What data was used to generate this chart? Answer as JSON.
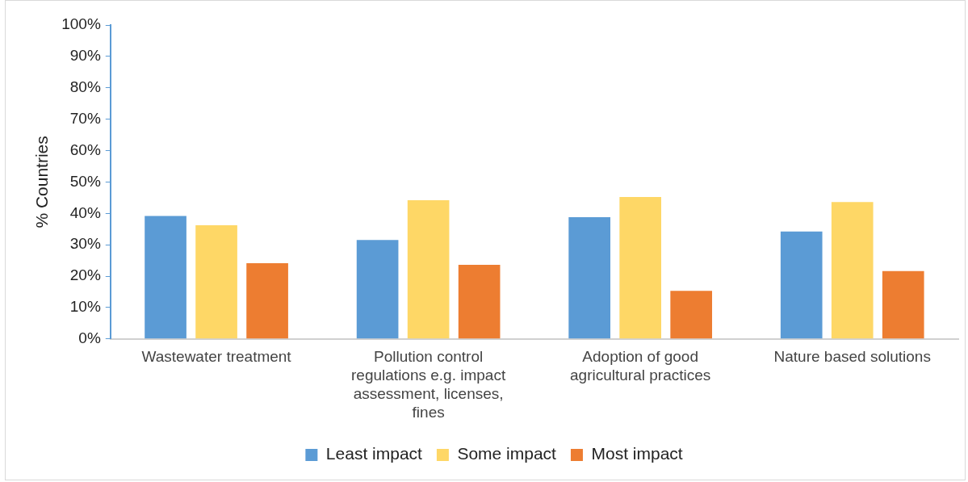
{
  "chart_data": {
    "type": "bar",
    "ylabel": "% Countries",
    "categories": [
      "Wastewater treatment",
      "Pollution control regulations e.g. impact assessment, licenses, fines",
      "Adoption of good agricultural practices",
      "Nature based solutions"
    ],
    "series": [
      {
        "name": "Least impact",
        "color": "#5b9bd5",
        "values": [
          39.2,
          31.5,
          38.8,
          34.2
        ]
      },
      {
        "name": "Some impact",
        "color": "#fed766",
        "values": [
          36.2,
          44.2,
          45.2,
          43.6
        ]
      },
      {
        "name": "Most impact",
        "color": "#ed7d31",
        "values": [
          24.1,
          23.6,
          15.3,
          21.6
        ]
      }
    ],
    "ylim": [
      0,
      100
    ],
    "yticks": [
      {
        "value": 0,
        "label": "0%"
      },
      {
        "value": 10,
        "label": "10%"
      },
      {
        "value": 20,
        "label": "20%"
      },
      {
        "value": 30,
        "label": "30%"
      },
      {
        "value": 40,
        "label": "40%"
      },
      {
        "value": 50,
        "label": "50%"
      },
      {
        "value": 60,
        "label": "60%"
      },
      {
        "value": 70,
        "label": "70%"
      },
      {
        "value": 80,
        "label": "80%"
      },
      {
        "value": 90,
        "label": "90%"
      },
      {
        "value": 100,
        "label": "100%"
      }
    ],
    "grid": false,
    "legend": "bottom"
  }
}
